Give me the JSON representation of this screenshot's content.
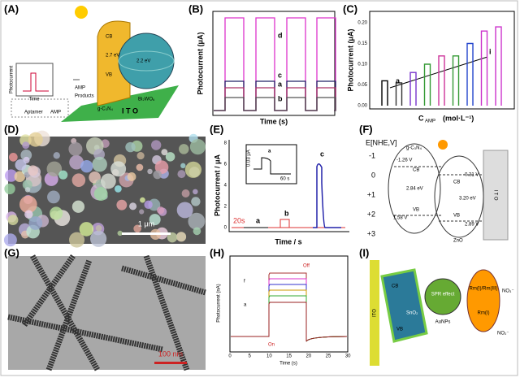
{
  "panels": {
    "A": {
      "label": "(A)",
      "inset_y": "Photocurrent",
      "inset_x": "Time",
      "aptamer": "Aptamer",
      "amp_legend": "AMP",
      "amp": "AMP",
      "products": "Products",
      "cb": "CB",
      "vb": "VB",
      "gap1": "2.7 eV",
      "gap2": "2.2 eV",
      "semi1": "g-C₃N₄",
      "semi2": "Bi₂WO₆",
      "ito": "I  T  O"
    },
    "B": {
      "label": "(B)",
      "ylabel": "Photocurrent (μA)",
      "xlabel": "Time (s)",
      "curves": [
        "d",
        "c",
        "a",
        "b"
      ]
    },
    "C": {
      "label": "(C)",
      "ylabel": "Photocurrent (μA)",
      "xlabel": "C",
      "xlabel_sub": "AMP",
      "xlabel_unit": "(mol·L⁻¹)",
      "yticks": [
        "0.00",
        "0.05",
        "0.10",
        "0.15",
        "0.20"
      ],
      "first": "a",
      "last": "i"
    },
    "D": {
      "label": "(D)",
      "scale": "1 μm"
    },
    "E": {
      "label": "(E)",
      "ylabel": "Photocurrent / μA",
      "xlabel": "Time / s",
      "yticks": [
        "0",
        "2",
        "4",
        "6",
        "8"
      ],
      "start": "20s",
      "curves": [
        "a",
        "b",
        "c"
      ],
      "inset_scale": "0.03 μA",
      "inset_curve": "a",
      "inset_time": "60 s"
    },
    "F": {
      "label": "(F)",
      "axis": "E[NHE,V]",
      "levels": [
        "-1",
        "0",
        "+1",
        "+2",
        "+3"
      ],
      "semi1": "g-C₃N₄",
      "cb1": "-1.26 V",
      "gap1": "2.84 eV",
      "vb1": "1.58 V",
      "cb2": "-0.31 V",
      "gap2": "3.20 eV",
      "vb2": "2.89 V",
      "semi2": "ZnO",
      "cb": "CB",
      "vb": "VB",
      "ito": "I T O"
    },
    "G": {
      "label": "(G)",
      "scale": "100 nm"
    },
    "H": {
      "label": "(H)",
      "ylabel": "Photocurrent (nA)",
      "xlabel": "Time (s)",
      "xticks": [
        "0",
        "5",
        "10",
        "15",
        "20",
        "25",
        "30"
      ],
      "top": "f",
      "bottom": "a",
      "on": "On",
      "off": "Off"
    },
    "I": {
      "label": "(I)",
      "ito": "ITO",
      "semi": "SnO₂",
      "cb": "CB",
      "vb": "VB",
      "spr": "SPR effect",
      "np": "AuNPs",
      "no3": "NO₃⁻",
      "no2": "NO₂⁻",
      "rm1": "Rm(I)/Rm(III)",
      "rm2": "Rm(I)"
    }
  }
}
